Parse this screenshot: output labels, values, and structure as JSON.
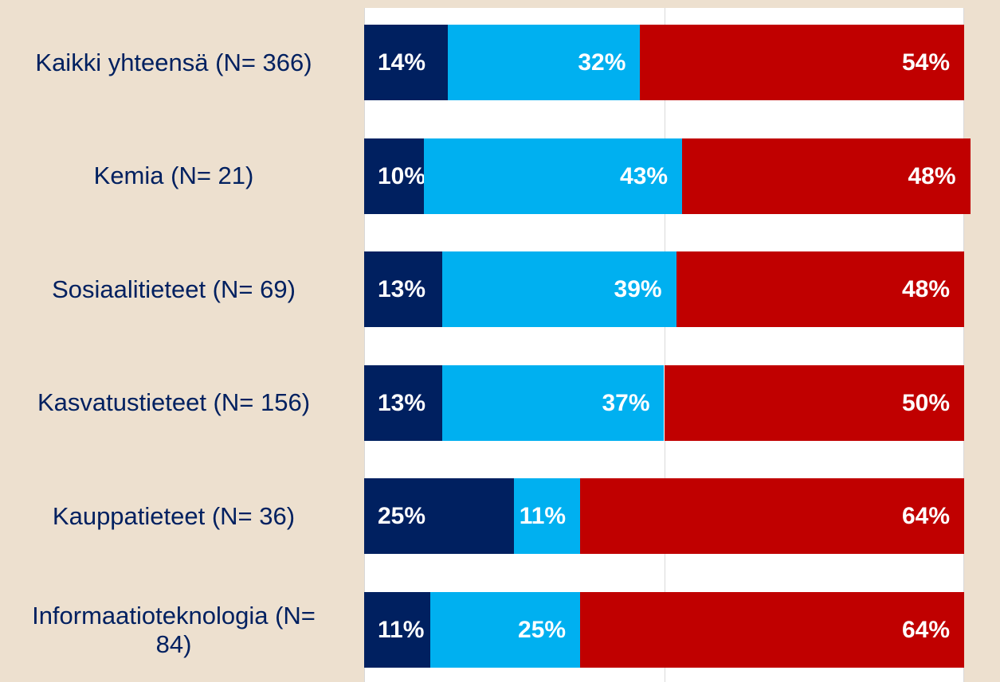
{
  "chart_data": {
    "type": "stacked_barh",
    "categories": [
      "Kaikki yhteensä (N= 366)",
      "Kemia (N= 21)",
      "Sosiaalitieteet (N= 69)",
      "Kasvatustieteet (N= 156)",
      "Kauppatieteet (N= 36)",
      "Informaatioteknologia (N= 84)"
    ],
    "series": [
      {
        "color": "#002060",
        "values": [
          14,
          10,
          13,
          13,
          25,
          11
        ],
        "value_labels": [
          "14%",
          "10%",
          "13%",
          "13%",
          "25%",
          "11%"
        ]
      },
      {
        "color": "#00b0f0",
        "values": [
          32,
          43,
          39,
          37,
          11,
          25
        ],
        "value_labels": [
          "32%",
          "43%",
          "39%",
          "37%",
          "11%",
          "25%"
        ]
      },
      {
        "color": "#c00000",
        "values": [
          54,
          48,
          48,
          50,
          64,
          64
        ],
        "value_labels": [
          "54%",
          "48%",
          "48%",
          "50%",
          "64%",
          "64%"
        ]
      }
    ],
    "xlim": [
      0,
      100
    ],
    "xticks": [
      0,
      50,
      100
    ],
    "grid": true
  }
}
